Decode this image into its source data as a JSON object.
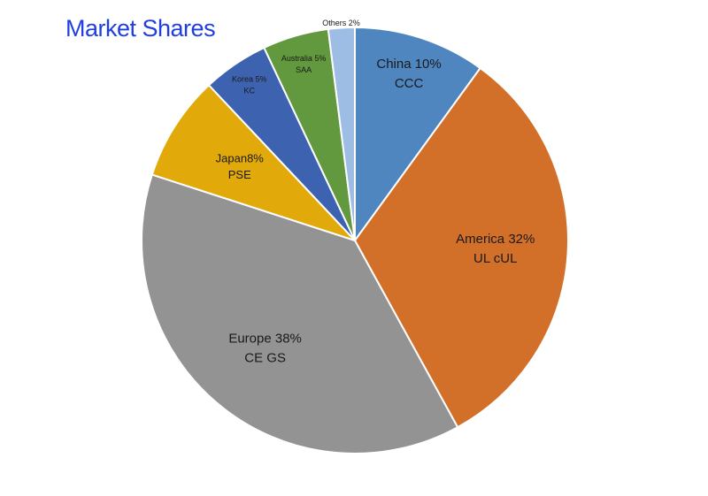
{
  "chart_data": {
    "type": "pie",
    "title": "Market Shares",
    "values": [
      10,
      32,
      38,
      8,
      5,
      5,
      2
    ],
    "value_labels": [
      "China 10%",
      "America 32%",
      "Europe 38%",
      "Japan8%",
      "Korea 5%",
      "Australia 5%",
      "Others 2%"
    ],
    "certifications": [
      "CCC",
      "UL cUL",
      "CE GS",
      "PSE",
      "KC",
      "SAA",
      null
    ],
    "colors": [
      "#4f86c0",
      "#d2702a",
      "#939393",
      "#e2a90a",
      "#3d63b0",
      "#62993e",
      "#9dbde4"
    ]
  }
}
